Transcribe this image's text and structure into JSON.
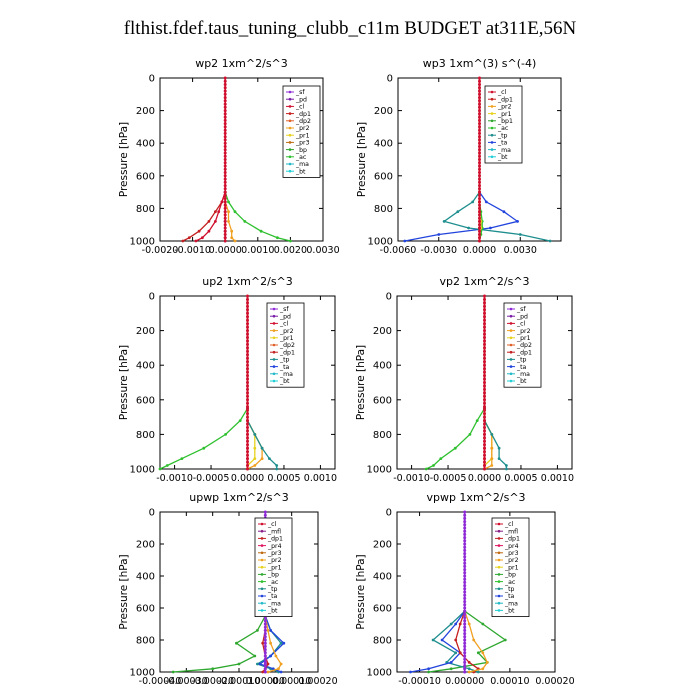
{
  "figure_title": "flthist.fdef.taus_tuning_clubb_c11m  BUDGET at311E,56N",
  "colors": {
    "sf": "#8e2bd6",
    "pd": "#7a1fa8",
    "mfl": "#8a1f8a",
    "cl": "#d0102e",
    "dp1": "#c42020",
    "dp2": "#e0602a",
    "pr1": "#e6d21e",
    "pr2": "#f0a020",
    "pr3": "#c06a10",
    "pr4": "#e01860",
    "bp": "#2fa82f",
    "ac": "#2ec02e",
    "tp": "#1e8e8e",
    "ta": "#2244dd",
    "ma": "#23b9c9",
    "bt": "#23cfd6"
  },
  "chart_data": [
    {
      "type": "line",
      "title": "wp2   1xm^2/s^3",
      "ylabel": "Pressure  [hPa]",
      "xlim": [
        -0.002,
        0.003
      ],
      "ylim": [
        1000,
        0
      ],
      "xticks": [
        "-0.0020",
        "-0.0010",
        "0.0000",
        "0.0010",
        "0.0020",
        "0.0030"
      ],
      "xtick_values": [
        -0.002,
        -0.001,
        0.0,
        0.001,
        0.002,
        0.003
      ],
      "yticks": [
        "0",
        "200",
        "400",
        "600",
        "800",
        "1000"
      ],
      "ytick_values": [
        0,
        200,
        400,
        600,
        800,
        1000
      ],
      "legend": [
        "_sf",
        "_pd",
        "_cl",
        "_dp1",
        "_dp2",
        "_pr2",
        "_pr1",
        "_pr3",
        "_bp",
        "_ac",
        "_ma",
        "_bt"
      ],
      "pressure": [
        0,
        700,
        760,
        820,
        880,
        940,
        980,
        1000
      ],
      "series": [
        {
          "name": "_ac",
          "color_key": "ac",
          "values": [
            0.0,
            0.0,
            0.0001,
            0.0003,
            0.0006,
            0.0011,
            0.0016,
            0.002
          ]
        },
        {
          "name": "_dp1",
          "color_key": "dp1",
          "values": [
            0.0,
            0.0,
            -0.0001,
            -0.0003,
            -0.0005,
            -0.0008,
            -0.0011,
            -0.0013
          ]
        },
        {
          "name": "_cl",
          "color_key": "cl",
          "values": [
            0.0,
            0.0,
            -0.0001,
            -0.0002,
            -0.0003,
            -0.0005,
            -0.0007,
            -0.0009
          ]
        },
        {
          "name": "_pr2",
          "color_key": "pr2",
          "values": [
            0.0,
            0.0,
            0.0,
            0.0001,
            0.0001,
            0.0002,
            0.0002,
            0.0003
          ]
        },
        {
          "name": "_bt",
          "color_key": "bt",
          "values": [
            0.0,
            0.0,
            0.0,
            0.0,
            0.0,
            0.0,
            0.0,
            0.0
          ]
        },
        {
          "name": "_sf",
          "color_key": "sf",
          "values": [
            0.0,
            0.0,
            0.0,
            0.0,
            0.0,
            0.0,
            0.0,
            0.0
          ]
        }
      ]
    },
    {
      "type": "line",
      "title": "wp3   1xm^(3) s^(-4)",
      "ylabel": "Pressure  [hPa]",
      "xlim": [
        -0.006,
        0.006
      ],
      "ylim": [
        1000,
        0
      ],
      "xticks": [
        "-0.0060",
        "-0.0030",
        "0.0000",
        "0.0030"
      ],
      "xtick_values": [
        -0.006,
        -0.003,
        0.0,
        0.003
      ],
      "yticks": [
        "0",
        "200",
        "400",
        "600",
        "800",
        "1000"
      ],
      "ytick_values": [
        0,
        200,
        400,
        600,
        800,
        1000
      ],
      "legend": [
        "_cl",
        "_dp1",
        "_pr2",
        "_pr1",
        "_bp1",
        "_ac",
        "_tp",
        "_ta",
        "_ma",
        "_bt"
      ],
      "pressure": [
        0,
        700,
        760,
        820,
        880,
        920,
        960,
        1000
      ],
      "series": [
        {
          "name": "_ta",
          "color_key": "ta",
          "values": [
            0.0,
            0.0,
            0.0005,
            0.0018,
            0.0028,
            0.0008,
            -0.003,
            -0.0055
          ]
        },
        {
          "name": "_tp",
          "color_key": "tp",
          "values": [
            0.0,
            0.0,
            -0.0005,
            -0.0016,
            -0.0026,
            -0.0008,
            0.003,
            0.0052
          ]
        },
        {
          "name": "_ac",
          "color_key": "ac",
          "values": [
            0.0,
            0.0,
            0.0,
            0.0001,
            0.0002,
            0.0002,
            0.0001,
            0.0
          ]
        },
        {
          "name": "_pr1",
          "color_key": "pr1",
          "values": [
            0.0,
            0.0,
            0.0,
            0.0,
            0.0001,
            0.0001,
            0.0,
            0.0
          ]
        },
        {
          "name": "_cl",
          "color_key": "cl",
          "values": [
            0.0,
            0.0,
            0.0,
            0.0,
            0.0,
            0.0,
            0.0,
            0.0
          ]
        }
      ]
    },
    {
      "type": "line",
      "title": "up2   1xm^2/s^3",
      "ylabel": "Pressure  [hPa]",
      "xlim": [
        -0.0012,
        0.0012
      ],
      "ylim": [
        1000,
        0
      ],
      "xticks": [
        "-0.0010",
        "-0.0005",
        "0.0000",
        "0.0005",
        "0.0010"
      ],
      "xtick_values": [
        -0.001,
        -0.0005,
        0.0,
        0.0005,
        0.001
      ],
      "yticks": [
        "0",
        "200",
        "400",
        "600",
        "800",
        "1000"
      ],
      "ytick_values": [
        0,
        200,
        400,
        600,
        800,
        1000
      ],
      "legend": [
        "_sf",
        "_pd",
        "_cl",
        "_pr2",
        "_pr1",
        "_dp2",
        "_dp1",
        "_tp",
        "_ta",
        "_ma",
        "_bt"
      ],
      "pressure": [
        0,
        650,
        720,
        800,
        880,
        940,
        980,
        1000
      ],
      "series": [
        {
          "name": "_dp1",
          "color_key": "ac",
          "values": [
            0.0,
            0.0,
            -0.0001,
            -0.0003,
            -0.0006,
            -0.0009,
            -0.0011,
            -0.0012
          ]
        },
        {
          "name": "_pr1",
          "color_key": "pr1",
          "values": [
            0.0,
            0.0,
            0.0,
            0.0001,
            0.0001,
            0.0001,
            0.0,
            0.0
          ]
        },
        {
          "name": "_pr2",
          "color_key": "pr2",
          "values": [
            0.0,
            0.0,
            0.0,
            0.0001,
            0.0002,
            0.0002,
            0.0001,
            0.0
          ]
        },
        {
          "name": "_tp",
          "color_key": "tp",
          "values": [
            0.0,
            0.0,
            0.0,
            0.0001,
            0.0002,
            0.0003,
            0.0004,
            0.0004
          ]
        },
        {
          "name": "_cl",
          "color_key": "cl",
          "values": [
            0.0,
            0.0,
            0.0,
            0.0,
            0.0,
            0.0,
            0.0,
            0.0
          ]
        }
      ]
    },
    {
      "type": "line",
      "title": "vp2   1xm^2/s^3",
      "ylabel": "Pressure  [hPa]",
      "xlim": [
        -0.0012,
        0.0012
      ],
      "ylim": [
        1000,
        0
      ],
      "xticks": [
        "-0.0010",
        "-0.0005",
        "0.0000",
        "0.0005",
        "0.0010"
      ],
      "xtick_values": [
        -0.001,
        -0.0005,
        0.0,
        0.0005,
        0.001
      ],
      "yticks": [
        "0",
        "200",
        "400",
        "600",
        "800",
        "1000"
      ],
      "ytick_values": [
        0,
        200,
        400,
        600,
        800,
        1000
      ],
      "legend": [
        "_sf",
        "_pd",
        "_cl",
        "_pr2",
        "_pr1",
        "_dp2",
        "_dp1",
        "_tp",
        "_ta",
        "_ma",
        "_bt"
      ],
      "pressure": [
        0,
        650,
        720,
        800,
        880,
        940,
        980,
        1000
      ],
      "series": [
        {
          "name": "_dp1",
          "color_key": "ac",
          "values": [
            0.0,
            0.0,
            -0.0001,
            -0.0002,
            -0.0004,
            -0.0006,
            -0.0007,
            -0.0008
          ]
        },
        {
          "name": "_pr1",
          "color_key": "pr1",
          "values": [
            0.0,
            0.0,
            0.0,
            0.0001,
            0.0001,
            0.0001,
            0.0,
            0.0
          ]
        },
        {
          "name": "_pr2",
          "color_key": "pr2",
          "values": [
            0.0,
            0.0,
            0.0,
            0.0001,
            0.0001,
            0.0001,
            0.0001,
            0.0
          ]
        },
        {
          "name": "_tp",
          "color_key": "tp",
          "values": [
            0.0,
            0.0,
            0.0,
            0.0001,
            0.0002,
            0.0002,
            0.0003,
            0.0003
          ]
        },
        {
          "name": "_cl",
          "color_key": "cl",
          "values": [
            0.0,
            0.0,
            0.0,
            0.0,
            0.0,
            0.0,
            0.0,
            0.0
          ]
        }
      ]
    },
    {
      "type": "line",
      "title": "upwp   1xm^2/s^3",
      "ylabel": "Pressure  [hPa]",
      "xlim": [
        -0.0004,
        0.0002
      ],
      "ylim": [
        1000,
        0
      ],
      "xticks": [
        "-0.00040",
        "-0.00030",
        "-0.00020",
        "-0.00010",
        "0.00000",
        "0.00010",
        "0.00020"
      ],
      "xtick_values": [
        -0.0004,
        -0.0003,
        -0.0002,
        -0.0001,
        0.0,
        0.0001,
        0.0002
      ],
      "yticks": [
        "0",
        "200",
        "400",
        "600",
        "800",
        "1000"
      ],
      "ytick_values": [
        0,
        200,
        400,
        600,
        800,
        1000
      ],
      "legend": [
        "_cl",
        "_mfl",
        "_dp1",
        "_pr4",
        "_pr3",
        "_pr2",
        "_pr1",
        "_bp",
        "_ac",
        "_tp",
        "_ta",
        "_ma",
        "_bt"
      ],
      "pressure": [
        0,
        650,
        740,
        820,
        900,
        950,
        980,
        1000
      ],
      "series": [
        {
          "name": "_bp",
          "color_key": "bp",
          "values": [
            0.0,
            0.0,
            -3e-05,
            -0.00011,
            -4e-05,
            -0.0001,
            -0.0002,
            -0.00035
          ]
        },
        {
          "name": "_tp",
          "color_key": "tp",
          "values": [
            0.0,
            0.0,
            2e-05,
            6e-05,
            2e-05,
            -3e-05,
            2e-05,
            5e-05
          ]
        },
        {
          "name": "_ta",
          "color_key": "ta",
          "values": [
            0.0,
            0.0,
            2e-05,
            7e-05,
            2e-05,
            -2e-05,
            3e-05,
            6e-05
          ]
        },
        {
          "name": "_pr2",
          "color_key": "pr2",
          "values": [
            0.0,
            0.0,
            1e-05,
            2e-05,
            4e-05,
            6e-05,
            5e-05,
            1e-05
          ]
        },
        {
          "name": "_dp1",
          "color_key": "dp1",
          "values": [
            0.0,
            0.0,
            0.0,
            -1e-05,
            0.0,
            1e-05,
            0.0,
            -1e-05
          ]
        },
        {
          "name": "_cl",
          "color_key": "sf",
          "values": [
            0.0,
            0.0,
            0.0,
            0.0,
            0.0,
            0.0,
            0.0,
            0.0
          ]
        }
      ]
    },
    {
      "type": "line",
      "title": "vpwp   1xm^2/s^3",
      "ylabel": "Pressure  [hPa]",
      "xlim": [
        -0.00015,
        0.0002
      ],
      "ylim": [
        1000,
        0
      ],
      "xticks": [
        "-0.00010",
        "0.00000",
        "0.00010",
        "0.00020"
      ],
      "xtick_values": [
        -0.0001,
        0.0,
        0.0001,
        0.0002
      ],
      "yticks": [
        "0",
        "200",
        "400",
        "600",
        "800",
        "1000"
      ],
      "ytick_values": [
        0,
        200,
        400,
        600,
        800,
        1000
      ],
      "legend": [
        "_cl",
        "_mfl",
        "_dp1",
        "_pr4",
        "_pr3",
        "_pr2",
        "_pr1",
        "_bp",
        "_ac",
        "_tp",
        "_ta",
        "_ma",
        "_bt"
      ],
      "pressure": [
        0,
        620,
        700,
        800,
        880,
        940,
        980,
        1000
      ],
      "series": [
        {
          "name": "_bp",
          "color_key": "bp",
          "values": [
            0.0,
            0.0,
            4e-05,
            9e-05,
            3e-05,
            5e-05,
            -3e-05,
            -8e-05
          ]
        },
        {
          "name": "_tp",
          "color_key": "tp",
          "values": [
            0.0,
            0.0,
            -3e-05,
            -7e-05,
            -2e-05,
            -4e-05,
            1e-05,
            3e-05
          ]
        },
        {
          "name": "_ta",
          "color_key": "ta",
          "values": [
            0.0,
            0.0,
            -2e-05,
            -5e-05,
            -1e-05,
            -3e-05,
            -8e-05,
            -0.00012
          ]
        },
        {
          "name": "_dp1",
          "color_key": "dp1",
          "values": [
            0.0,
            0.0,
            -1e-05,
            -2e-05,
            -1e-05,
            1e-05,
            3e-05,
            2e-05
          ]
        },
        {
          "name": "_pr2",
          "color_key": "pr2",
          "values": [
            0.0,
            0.0,
            1e-05,
            2e-05,
            4e-05,
            5e-05,
            4e-05,
            1e-05
          ]
        },
        {
          "name": "_cl",
          "color_key": "sf",
          "values": [
            0.0,
            0.0,
            0.0,
            0.0,
            0.0,
            0.0,
            0.0,
            0.0
          ]
        }
      ]
    }
  ]
}
